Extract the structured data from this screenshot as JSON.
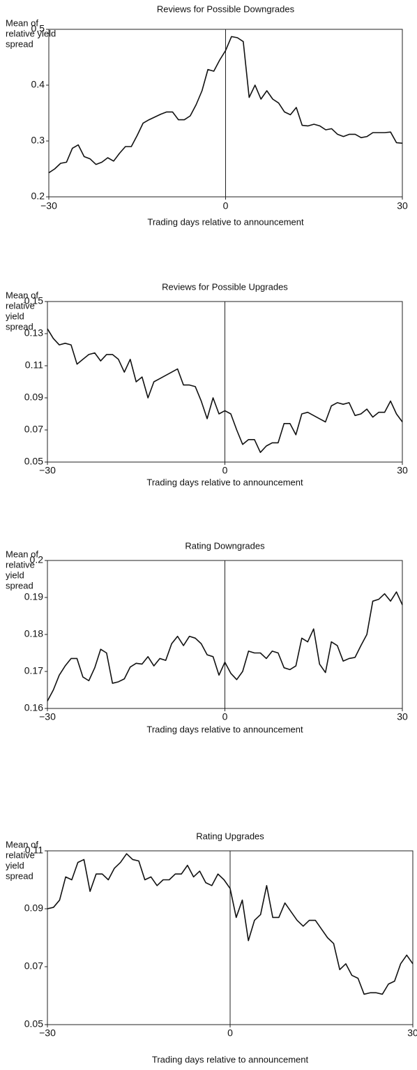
{
  "chart_data": [
    {
      "type": "line",
      "title": "Reviews for Possible Downgrades",
      "xlabel": "Trading days relative to announcement",
      "ylabel": [
        "Mean of",
        "relative yield",
        "spread"
      ],
      "x": [
        -30,
        -29,
        -28,
        -27,
        -26,
        -25,
        -24,
        -23,
        -22,
        -21,
        -20,
        -19,
        -18,
        -17,
        -16,
        -15,
        -14,
        -13,
        -12,
        -11,
        -10,
        -9,
        -8,
        -7,
        -6,
        -5,
        -4,
        -3,
        -2,
        -1,
        0,
        1,
        2,
        3,
        4,
        5,
        6,
        7,
        8,
        9,
        10,
        11,
        12,
        13,
        14,
        15,
        16,
        17,
        18,
        19,
        20,
        21,
        22,
        23,
        24,
        25,
        26,
        27,
        28,
        29,
        30
      ],
      "values": [
        0.243,
        0.25,
        0.26,
        0.262,
        0.287,
        0.293,
        0.272,
        0.268,
        0.258,
        0.262,
        0.27,
        0.264,
        0.278,
        0.29,
        0.29,
        0.31,
        0.332,
        0.338,
        0.343,
        0.348,
        0.352,
        0.352,
        0.338,
        0.338,
        0.345,
        0.365,
        0.39,
        0.428,
        0.425,
        0.445,
        0.462,
        0.487,
        0.485,
        0.478,
        0.378,
        0.4,
        0.375,
        0.39,
        0.375,
        0.368,
        0.352,
        0.347,
        0.36,
        0.328,
        0.327,
        0.33,
        0.327,
        0.32,
        0.322,
        0.312,
        0.308,
        0.312,
        0.312,
        0.306,
        0.308,
        0.315,
        0.315,
        0.315,
        0.316,
        0.297,
        0.296
      ],
      "color": "#111111",
      "xlim": [
        -30,
        30
      ],
      "xticks": [
        {
          "value": -30,
          "label": "−30"
        },
        0,
        30
      ],
      "ylim": [
        0.2,
        0.5
      ],
      "yticks": [
        0.2,
        0.3,
        0.4,
        0.5
      ]
    },
    {
      "type": "line",
      "title": "Reviews for Possible Upgrades",
      "xlabel": "Trading days relative to announcement",
      "ylabel": [
        "Mean of",
        "relative",
        "yield",
        "spread"
      ],
      "x": [
        -30,
        -29,
        -28,
        -27,
        -26,
        -25,
        -24,
        -23,
        -22,
        -21,
        -20,
        -19,
        -18,
        -17,
        -16,
        -15,
        -14,
        -13,
        -12,
        -11,
        -10,
        -9,
        -8,
        -7,
        -6,
        -5,
        -4,
        -3,
        -2,
        -1,
        0,
        1,
        2,
        3,
        4,
        5,
        6,
        7,
        8,
        9,
        10,
        11,
        12,
        13,
        14,
        15,
        16,
        17,
        18,
        19,
        20,
        21,
        22,
        23,
        24,
        25,
        26,
        27,
        28,
        29,
        30
      ],
      "values": [
        0.133,
        0.127,
        0.123,
        0.124,
        0.123,
        0.111,
        0.114,
        0.117,
        0.118,
        0.113,
        0.117,
        0.117,
        0.114,
        0.106,
        0.114,
        0.1,
        0.103,
        0.09,
        0.1,
        0.102,
        0.104,
        0.106,
        0.108,
        0.098,
        0.098,
        0.097,
        0.088,
        0.077,
        0.09,
        0.08,
        0.082,
        0.08,
        0.07,
        0.061,
        0.064,
        0.064,
        0.056,
        0.06,
        0.062,
        0.062,
        0.074,
        0.074,
        0.067,
        0.08,
        0.081,
        0.079,
        0.077,
        0.075,
        0.085,
        0.087,
        0.086,
        0.087,
        0.079,
        0.08,
        0.083,
        0.078,
        0.081,
        0.081,
        0.088,
        0.08,
        0.075
      ],
      "color": "#111111",
      "xlim": [
        -30,
        30
      ],
      "xticks": [
        {
          "value": -30,
          "label": "−30"
        },
        0,
        30
      ],
      "ylim": [
        0.05,
        0.15
      ],
      "yticks": [
        0.05,
        0.07,
        0.09,
        0.11,
        0.13,
        0.15
      ]
    },
    {
      "type": "line",
      "title": "Rating Downgrades",
      "xlabel": "Trading days relative to announcement",
      "ylabel": [
        "Mean of",
        "relative",
        "yield",
        "spread"
      ],
      "x": [
        -30,
        -29,
        -28,
        -27,
        -26,
        -25,
        -24,
        -23,
        -22,
        -21,
        -20,
        -19,
        -18,
        -17,
        -16,
        -15,
        -14,
        -13,
        -12,
        -11,
        -10,
        -9,
        -8,
        -7,
        -6,
        -5,
        -4,
        -3,
        -2,
        -1,
        0,
        1,
        2,
        3,
        4,
        5,
        6,
        7,
        8,
        9,
        10,
        11,
        12,
        13,
        14,
        15,
        16,
        17,
        18,
        19,
        20,
        21,
        22,
        23,
        24,
        25,
        26,
        27,
        28,
        29,
        30
      ],
      "values": [
        0.162,
        0.165,
        0.169,
        0.1715,
        0.1735,
        0.1735,
        0.1685,
        0.1675,
        0.171,
        0.176,
        0.175,
        0.1668,
        0.1672,
        0.168,
        0.1712,
        0.1722,
        0.172,
        0.174,
        0.1715,
        0.1735,
        0.173,
        0.1775,
        0.1795,
        0.177,
        0.1795,
        0.179,
        0.1775,
        0.1745,
        0.174,
        0.169,
        0.1725,
        0.1695,
        0.1678,
        0.17,
        0.1755,
        0.175,
        0.175,
        0.1735,
        0.1755,
        0.175,
        0.171,
        0.1705,
        0.1715,
        0.179,
        0.178,
        0.1815,
        0.172,
        0.1697,
        0.178,
        0.177,
        0.1728,
        0.1735,
        0.1738,
        0.177,
        0.18,
        0.189,
        0.1895,
        0.191,
        0.189,
        0.1915,
        0.188
      ],
      "color": "#111111",
      "xlim": [
        -30,
        30
      ],
      "xticks": [
        {
          "value": -30,
          "label": "−30"
        },
        0,
        30
      ],
      "ylim": [
        0.16,
        0.2
      ],
      "yticks": [
        0.16,
        0.17,
        0.18,
        0.19,
        0.2
      ]
    },
    {
      "type": "line",
      "title": "Rating Upgrades",
      "xlabel": "Trading days relative to announcement",
      "ylabel": [
        "Mean of",
        "relative",
        "yield",
        "spread"
      ],
      "x": [
        -30,
        -29,
        -28,
        -27,
        -26,
        -25,
        -24,
        -23,
        -22,
        -21,
        -20,
        -19,
        -18,
        -17,
        -16,
        -15,
        -14,
        -13,
        -12,
        -11,
        -10,
        -9,
        -8,
        -7,
        -6,
        -5,
        -4,
        -3,
        -2,
        -1,
        0,
        1,
        2,
        3,
        4,
        5,
        6,
        7,
        8,
        9,
        10,
        11,
        12,
        13,
        14,
        15,
        16,
        17,
        18,
        19,
        20,
        21,
        22,
        23,
        24,
        25,
        26,
        27,
        28,
        29,
        30
      ],
      "values": [
        0.09,
        0.0905,
        0.093,
        0.101,
        0.1,
        0.106,
        0.107,
        0.096,
        0.102,
        0.102,
        0.1,
        0.104,
        0.106,
        0.109,
        0.107,
        0.1065,
        0.1,
        0.101,
        0.098,
        0.1,
        0.1,
        0.102,
        0.102,
        0.105,
        0.101,
        0.103,
        0.099,
        0.098,
        0.102,
        0.1,
        0.097,
        0.087,
        0.093,
        0.079,
        0.086,
        0.088,
        0.098,
        0.087,
        0.087,
        0.092,
        0.089,
        0.086,
        0.084,
        0.086,
        0.086,
        0.083,
        0.08,
        0.078,
        0.069,
        0.071,
        0.067,
        0.066,
        0.0605,
        0.061,
        0.061,
        0.0605,
        0.064,
        0.065,
        0.071,
        0.074,
        0.071
      ],
      "color": "#111111",
      "xlim": [
        -30,
        30
      ],
      "xticks": [
        {
          "value": -30,
          "label": "−30"
        },
        0,
        30
      ],
      "ylim": [
        0.05,
        0.11
      ],
      "yticks": [
        0.05,
        0.07,
        0.09,
        0.11
      ]
    }
  ]
}
